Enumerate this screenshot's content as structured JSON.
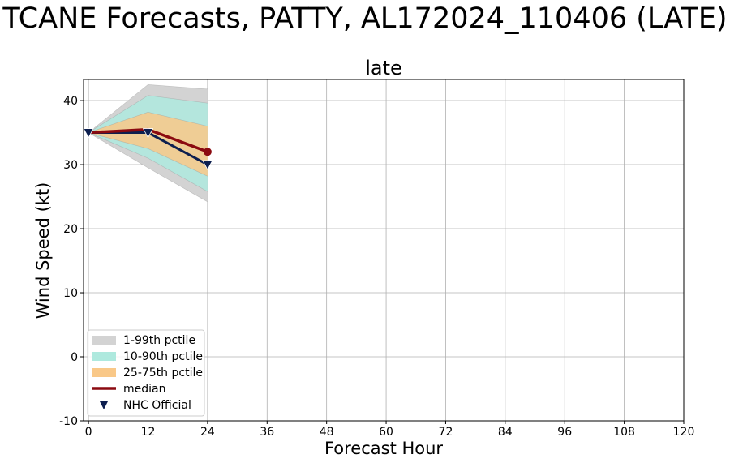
{
  "page_title": "TCANE Forecasts, PATTY, AL172024_110406 (LATE)",
  "chart_data": {
    "type": "line",
    "title": "late",
    "xlabel": "Forecast Hour",
    "ylabel": "Wind Speed (kt)",
    "xlim": [
      -1,
      120
    ],
    "ylim": [
      -10,
      43.3
    ],
    "xticks": [
      0,
      12,
      24,
      36,
      48,
      60,
      72,
      84,
      96,
      108,
      120
    ],
    "yticks": [
      -10,
      0,
      10,
      20,
      30,
      40
    ],
    "grid": true,
    "legend_position": "lower-left",
    "x": [
      0,
      12,
      24
    ],
    "bands": [
      {
        "name": "1-99th pctile",
        "color": "#d3d3d3",
        "lower": [
          35,
          29.5,
          24.2
        ],
        "upper": [
          35,
          42.5,
          41.8
        ]
      },
      {
        "name": "10-90th pctile",
        "color": "#aee9de",
        "lower": [
          35,
          31,
          25.8
        ],
        "upper": [
          35,
          40.8,
          39.6
        ]
      },
      {
        "name": "25-75th pctile",
        "color": "#f9c888",
        "lower": [
          35,
          32.5,
          28.2
        ],
        "upper": [
          35,
          38.2,
          36
        ]
      }
    ],
    "series": [
      {
        "name": "median",
        "color": "#8b0a10",
        "values": [
          35,
          35.5,
          32
        ]
      },
      {
        "name": "NHC Official",
        "color": "#0d1f4f",
        "values": [
          35,
          35,
          30
        ]
      }
    ]
  }
}
